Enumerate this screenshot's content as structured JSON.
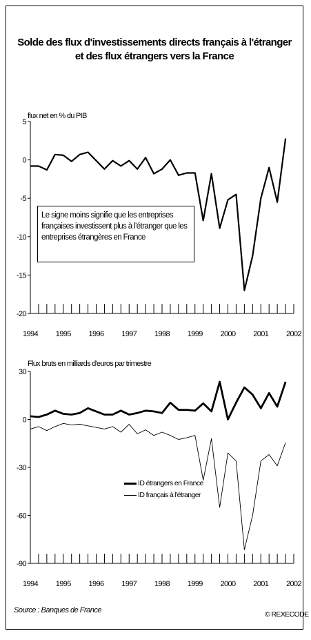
{
  "title_line1": "Solde des flux d'investissements directs français à l'étranger",
  "title_line2": "et des flux étrangers vers la France",
  "source": "Source : Banques de France",
  "copyright": "© REXECODE",
  "chart_data": [
    {
      "type": "line",
      "ylabel": "flux net en % du PIB",
      "ylim": [
        -20,
        5
      ],
      "yticks": [
        5,
        0,
        -5,
        -10,
        -15,
        -20
      ],
      "xticks": [
        "1994",
        "1995",
        "1996",
        "1997",
        "1998",
        "1999",
        "2000",
        "2001",
        "2002"
      ],
      "grid": false,
      "annotation": "Le signe moins signifie que les entreprises françaises investissent plus à l'étranger que les entreprises étrangères en France",
      "series": [
        {
          "name": "",
          "x": [
            1994.0,
            1994.25,
            1994.5,
            1994.75,
            1995.0,
            1995.25,
            1995.5,
            1995.75,
            1996.0,
            1996.25,
            1996.5,
            1996.75,
            1997.0,
            1997.25,
            1997.5,
            1997.75,
            1998.0,
            1998.25,
            1998.5,
            1998.75,
            1999.0,
            1999.25,
            1999.5,
            1999.75,
            2000.0,
            2000.25,
            2000.5,
            2000.75,
            2001.0,
            2001.25,
            2001.5,
            2001.75
          ],
          "values": [
            -0.8,
            -0.8,
            -1.3,
            0.7,
            0.6,
            -0.2,
            0.7,
            1.0,
            -0.1,
            -1.2,
            -0.1,
            -0.8,
            -0.1,
            -1.2,
            0.3,
            -1.8,
            -1.2,
            0.0,
            -2.0,
            -1.7,
            -1.7,
            -7.9,
            -1.8,
            -8.9,
            -5.2,
            -4.5,
            -17.0,
            -12.5,
            -5.0,
            -1.0,
            -5.5,
            2.8
          ]
        }
      ]
    },
    {
      "type": "line",
      "ylabel": "Flux bruts en milliards d'euros par trimestre",
      "ylim": [
        -90,
        30
      ],
      "yticks": [
        30,
        0,
        -30,
        -60,
        -90
      ],
      "xticks": [
        "1994",
        "1995",
        "1996",
        "1997",
        "1998",
        "1999",
        "2000",
        "2001",
        "2002"
      ],
      "grid": false,
      "legend": "center",
      "x": [
        1994.0,
        1994.25,
        1994.5,
        1994.75,
        1995.0,
        1995.25,
        1995.5,
        1995.75,
        1996.0,
        1996.25,
        1996.5,
        1996.75,
        1997.0,
        1997.25,
        1997.5,
        1997.75,
        1998.0,
        1998.25,
        1998.5,
        1998.75,
        1999.0,
        1999.25,
        1999.5,
        1999.75,
        2000.0,
        2000.25,
        2000.5,
        2000.75,
        2001.0,
        2001.25,
        2001.5,
        2001.75
      ],
      "series": [
        {
          "name": "ID étrangers en France",
          "values": [
            2,
            1.5,
            3,
            5.5,
            3.5,
            3,
            4,
            7,
            5,
            3,
            3,
            5.5,
            3,
            4,
            5.5,
            5,
            4,
            10.5,
            6,
            6,
            5.5,
            10,
            5,
            23.5,
            0,
            10.5,
            20,
            15.5,
            7,
            16.5,
            8,
            23.5
          ]
        },
        {
          "name": "ID français à l'étranger",
          "values": [
            -6,
            -4.5,
            -7,
            -4.5,
            -2.5,
            -3.5,
            -3,
            -4,
            -5,
            -6,
            -4.5,
            -8,
            -3,
            -9,
            -6.5,
            -10,
            -8,
            -10,
            -12.5,
            -11.5,
            -10,
            -38,
            -12,
            -55,
            -21,
            -26,
            -81.5,
            -60,
            -26,
            -22,
            -29,
            -14.5
          ]
        }
      ]
    }
  ]
}
